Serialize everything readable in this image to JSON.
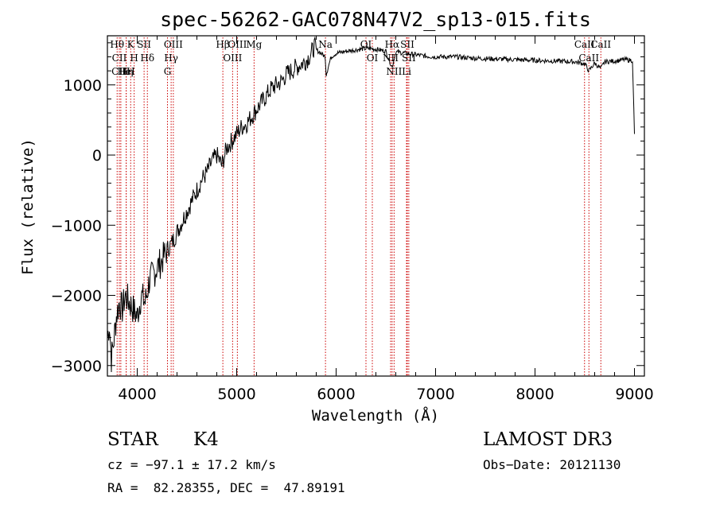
{
  "chart_data": {
    "type": "line",
    "title": "spec-56262-GAC078N47V2_sp13-015.fits",
    "xlabel": "Wavelength (Å)",
    "ylabel": "Flux (relative)",
    "xlim": [
      3700,
      9100
    ],
    "ylim": [
      -3150,
      1700
    ],
    "xticks": [
      4000,
      5000,
      6000,
      7000,
      8000,
      9000
    ],
    "yticks": [
      -3000,
      -2000,
      -1000,
      0,
      1000
    ],
    "xtick_labels": [
      "4000",
      "5000",
      "6000",
      "7000",
      "8000",
      "9000"
    ],
    "ytick_labels": [
      "−3000",
      "−2000",
      "−1000",
      "0",
      "1000"
    ],
    "series": [
      {
        "name": "spectrum",
        "x": [
          3700,
          3720,
          3740,
          3760,
          3790,
          3820,
          3850,
          3880,
          3920,
          3960,
          4000,
          4040,
          4080,
          4120,
          4160,
          4200,
          4250,
          4300,
          4350,
          4400,
          4450,
          4500,
          4550,
          4600,
          4650,
          4700,
          4750,
          4800,
          4850,
          4900,
          4950,
          5000,
          5050,
          5100,
          5150,
          5200,
          5250,
          5300,
          5350,
          5400,
          5450,
          5500,
          5550,
          5600,
          5650,
          5700,
          5750,
          5780,
          5800,
          5850,
          5890,
          5900,
          5950,
          6000,
          6100,
          6200,
          6300,
          6400,
          6500,
          6563,
          6600,
          6700,
          6800,
          6900,
          7000,
          7200,
          7400,
          7600,
          7800,
          8000,
          8200,
          8400,
          8500,
          8542,
          8600,
          8662,
          8700,
          8800,
          8900,
          8980,
          9000
        ],
        "y": [
          -2600,
          -2400,
          -2900,
          -2700,
          -2300,
          -2100,
          -2200,
          -2000,
          -2100,
          -2200,
          -2300,
          -2000,
          -2100,
          -1800,
          -1700,
          -1600,
          -1500,
          -1350,
          -1250,
          -1100,
          -950,
          -800,
          -650,
          -500,
          -350,
          -250,
          -100,
          0,
          -150,
          100,
          200,
          300,
          400,
          450,
          550,
          650,
          750,
          850,
          950,
          1000,
          1050,
          1150,
          1200,
          1250,
          1300,
          1350,
          1450,
          1550,
          1500,
          1450,
          1400,
          1150,
          1400,
          1450,
          1480,
          1500,
          1520,
          1510,
          1480,
          1250,
          1470,
          1450,
          1430,
          1410,
          1400,
          1400,
          1380,
          1370,
          1360,
          1350,
          1340,
          1330,
          1300,
          1200,
          1310,
          1230,
          1330,
          1340,
          1360,
          1350,
          300
        ]
      }
    ],
    "lines": [
      {
        "label": "Hθ",
        "wl": 3798
      },
      {
        "label": "CII",
        "wl": 3820
      },
      {
        "label": "CIII",
        "wl": 3835
      },
      {
        "label": "Hη",
        "wl": 3889
      },
      {
        "label": "HeI",
        "wl": 3889
      },
      {
        "label": "K",
        "wl": 3934
      },
      {
        "label": "H",
        "wl": 3969
      },
      {
        "label": "SII",
        "wl": 4069
      },
      {
        "label": "Hδ",
        "wl": 4102
      },
      {
        "label": "OIII",
        "wl": 4363
      },
      {
        "label": "Hγ",
        "wl": 4341
      },
      {
        "label": "G",
        "wl": 4304
      },
      {
        "label": "Hβ",
        "wl": 4861
      },
      {
        "label": "OIII",
        "wl": 4959
      },
      {
        "label": "OIII",
        "wl": 5007
      },
      {
        "label": "Mg",
        "wl": 5175
      },
      {
        "label": "Na",
        "wl": 5893
      },
      {
        "label": "OI",
        "wl": 6300
      },
      {
        "label": "OI",
        "wl": 6364
      },
      {
        "label": "Hα",
        "wl": 6563
      },
      {
        "label": "NII",
        "wl": 6548
      },
      {
        "label": "NII",
        "wl": 6583
      },
      {
        "label": "SII",
        "wl": 6716
      },
      {
        "label": "SII",
        "wl": 6731
      },
      {
        "label": "Li",
        "wl": 6708
      },
      {
        "label": "CaII",
        "wl": 8498
      },
      {
        "label": "CaII",
        "wl": 8542
      },
      {
        "label": "CaII",
        "wl": 8662
      }
    ]
  },
  "info": {
    "object_class": "STAR",
    "subclass": "K4",
    "survey": "LAMOST DR3",
    "cz": "cz = −97.1 ± 17.2 km/s",
    "obs_date": "Obs−Date: 20121130",
    "radec": "RA =  82.28355, DEC =  47.89191"
  },
  "colors": {
    "spectrum": "#000000",
    "line_markers": "#cc0000",
    "background": "#ffffff"
  }
}
